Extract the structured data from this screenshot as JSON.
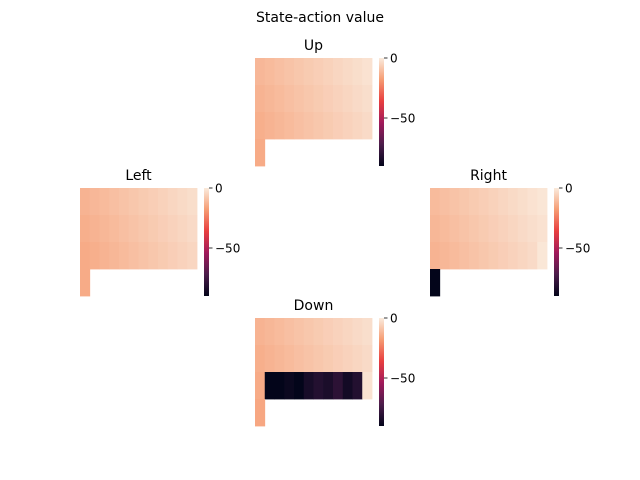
{
  "figure": {
    "suptitle": "State-action value"
  },
  "chart_data": [
    {
      "type": "heatmap",
      "title": "Up",
      "rows": 4,
      "cols": 12,
      "colorbar": {
        "min": -90,
        "max": 0,
        "ticks": [
          0,
          -50
        ],
        "tick_labels": [
          "0",
          "−50"
        ]
      },
      "values": [
        [
          -11.8,
          -11.0,
          -10.1,
          -9.2,
          -8.3,
          -7.4,
          -6.6,
          -5.7,
          -4.8,
          -3.9,
          -3.0,
          -2.1
        ],
        [
          -12.8,
          -11.9,
          -11.0,
          -10.1,
          -9.2,
          -8.3,
          -7.4,
          -6.5,
          -5.6,
          -4.7,
          -3.8,
          -2.9
        ],
        [
          -13.7,
          -12.8,
          -11.9,
          -11.0,
          -10.1,
          -9.2,
          -8.3,
          -7.4,
          -6.5,
          -5.6,
          -4.7,
          -3.8
        ],
        [
          -14.6,
          null,
          null,
          null,
          null,
          null,
          null,
          null,
          null,
          null,
          null,
          null
        ]
      ]
    },
    {
      "type": "heatmap",
      "title": "Left",
      "rows": 4,
      "cols": 12,
      "colorbar": {
        "min": -90,
        "max": 0,
        "ticks": [
          0,
          -50
        ],
        "tick_labels": [
          "0",
          "−50"
        ]
      },
      "values": [
        [
          -12.7,
          -11.8,
          -11.0,
          -10.1,
          -9.2,
          -8.3,
          -7.4,
          -6.6,
          -5.7,
          -4.8,
          -3.9,
          -3.0
        ],
        [
          -13.7,
          -12.8,
          -11.9,
          -11.0,
          -10.1,
          -9.2,
          -8.3,
          -7.4,
          -6.5,
          -5.6,
          -4.7,
          -3.8
        ],
        [
          -14.6,
          -13.7,
          -12.8,
          -11.9,
          -11.0,
          -10.1,
          -9.2,
          -8.3,
          -7.4,
          -6.5,
          -5.6,
          -4.7
        ],
        [
          -14.6,
          null,
          null,
          null,
          null,
          null,
          null,
          null,
          null,
          null,
          null,
          null
        ]
      ]
    },
    {
      "type": "heatmap",
      "title": "Right",
      "rows": 4,
      "cols": 12,
      "colorbar": {
        "min": -90,
        "max": 0,
        "ticks": [
          0,
          -50
        ],
        "tick_labels": [
          "0",
          "−50"
        ]
      },
      "values": [
        [
          -11.0,
          -10.1,
          -9.2,
          -8.3,
          -7.4,
          -6.6,
          -5.7,
          -4.8,
          -3.9,
          -3.0,
          -2.1,
          -1.2
        ],
        [
          -11.9,
          -11.0,
          -10.1,
          -9.2,
          -8.3,
          -7.4,
          -6.5,
          -5.6,
          -4.7,
          -3.8,
          -2.9,
          -2.0
        ],
        [
          -12.8,
          -11.9,
          -11.0,
          -10.1,
          -9.2,
          -8.3,
          -7.4,
          -6.5,
          -5.6,
          -4.7,
          -3.8,
          -1.0
        ],
        [
          -113.7,
          null,
          null,
          null,
          null,
          null,
          null,
          null,
          null,
          null,
          null,
          null
        ]
      ]
    },
    {
      "type": "heatmap",
      "title": "Down",
      "rows": 4,
      "cols": 12,
      "colorbar": {
        "min": -90,
        "max": 0,
        "ticks": [
          0,
          -50
        ],
        "tick_labels": [
          "0",
          "−50"
        ]
      },
      "values": [
        [
          -12.8,
          -11.9,
          -11.0,
          -10.1,
          -9.2,
          -8.3,
          -7.4,
          -6.5,
          -5.6,
          -4.7,
          -3.8,
          -2.9
        ],
        [
          -13.7,
          -12.8,
          -11.9,
          -11.0,
          -10.1,
          -9.2,
          -8.3,
          -7.4,
          -6.5,
          -5.6,
          -4.7,
          -3.8
        ],
        [
          -14.6,
          -100.0,
          -95.0,
          -88.0,
          -92.0,
          -85.0,
          -82.0,
          -84.0,
          -80.0,
          -86.0,
          -82.0,
          -2.0
        ],
        [
          -15.4,
          null,
          null,
          null,
          null,
          null,
          null,
          null,
          null,
          null,
          null,
          null
        ]
      ]
    }
  ],
  "colormap": {
    "name": "rocket",
    "stops": [
      "#03051A",
      "#4C1D4B",
      "#A11A5B",
      "#E83F3F",
      "#F69C73",
      "#FAEBDD"
    ]
  }
}
